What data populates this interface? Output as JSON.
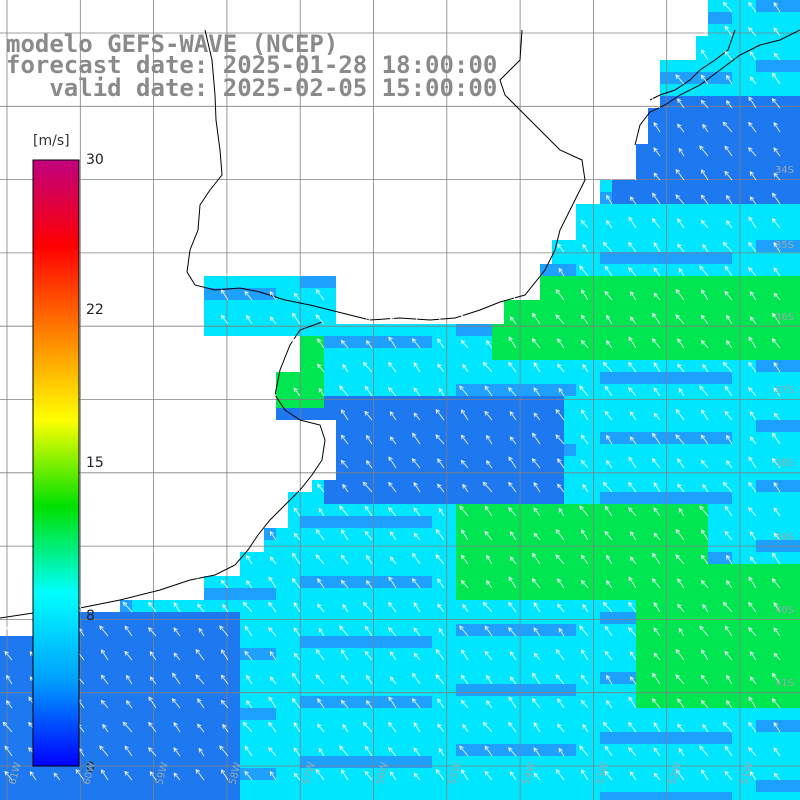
{
  "title": {
    "line1": "modelo GEFS-WAVE (NCEP)",
    "line2": "forecast date: 2025-01-28 18:00:00",
    "line3": "   valid date: 2025-02-05 15:00:00"
  },
  "legend": {
    "unit": "[m/s]",
    "ticks": [
      "30",
      "22",
      "15",
      "8",
      "0"
    ],
    "range": [
      0,
      30
    ],
    "colors": [
      "#0000ff",
      "#00a0ff",
      "#00ffff",
      "#00e000",
      "#ffff00",
      "#ff8000",
      "#ff0000",
      "#c0007f"
    ]
  },
  "axes": {
    "lat_labels": [
      "34S",
      "35S",
      "36S",
      "37S",
      "38S",
      "39S",
      "40S",
      "41S"
    ],
    "lon_labels": [
      "61W",
      "60W",
      "59W",
      "58W",
      "57W",
      "56W",
      "55W",
      "54W",
      "53W",
      "52W",
      "51W"
    ]
  },
  "field": {
    "name": "wind speed",
    "colors": {
      "blue": "#1e78f0",
      "light_blue": "#1ea0ff",
      "cyan": "#00e6ff",
      "green": "#00e650",
      "coastline": "#000000",
      "grid": "#808080",
      "arrows": "#ffffff"
    }
  }
}
